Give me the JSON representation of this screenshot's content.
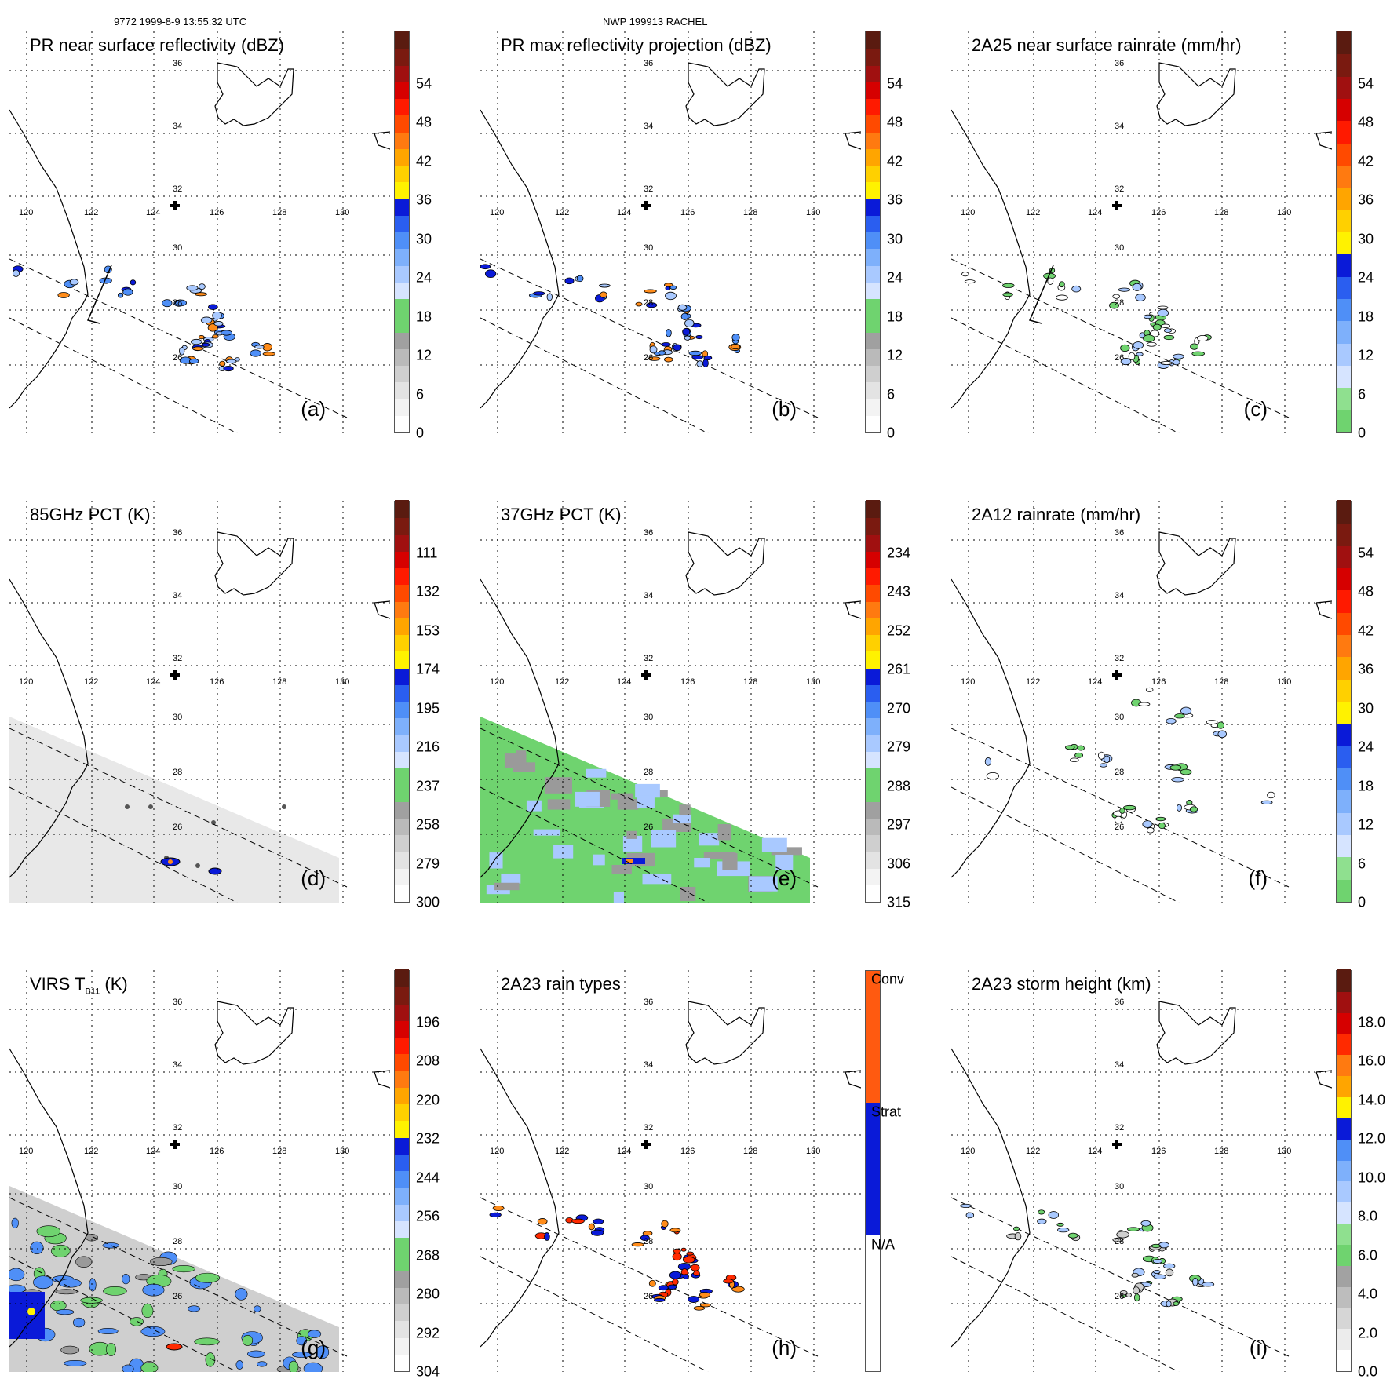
{
  "header": {
    "orbit_info": "9772 1999-8-9 13:55:32 UTC",
    "storm_info": "NWP 199913 RACHEL"
  },
  "grid": {
    "lat_labels": [
      "36",
      "34",
      "32",
      "30",
      "28",
      "26"
    ],
    "lon_labels": [
      "120",
      "122",
      "124",
      "126",
      "128",
      "130"
    ]
  },
  "colors": {
    "gray_ramp": [
      "#ffffff",
      "#eeeeee",
      "#dcdcdc",
      "#c6c6c6",
      "#aaaaaa"
    ],
    "green": "#6fd36f",
    "light_blue": "#a9c9ff",
    "mid_blue": "#4f8ff7",
    "blue": "#0a1ad8",
    "yellow": "#fff200",
    "orange": "#ff8c1a",
    "red": "#ff2a00",
    "dark_red": "#a01010",
    "brown": "#5a1b10"
  },
  "panels": [
    {
      "id": "a",
      "title": "PR near surface reflectivity (dBZ)",
      "label": "(a)",
      "ticks": [
        "0",
        "6",
        "12",
        "18",
        "24",
        "30",
        "36",
        "42",
        "48",
        "54"
      ],
      "scale": "dbz",
      "field": "swath-points"
    },
    {
      "id": "b",
      "title": "PR max reflectivity projection (dBZ)",
      "label": "(b)",
      "ticks": [
        "0",
        "6",
        "12",
        "18",
        "24",
        "30",
        "36",
        "42",
        "48",
        "54"
      ],
      "scale": "dbz",
      "field": "swath-points"
    },
    {
      "id": "c",
      "title": "2A25 near surface rainrate (mm/hr)",
      "label": "(c)",
      "ticks": [
        "0",
        "6",
        "12",
        "18",
        "24",
        "30",
        "36",
        "42",
        "48",
        "54"
      ],
      "scale": "rain",
      "field": "swath-points"
    },
    {
      "id": "d",
      "title": "85GHz PCT (K)",
      "label": "(d)",
      "ticks": [
        "300",
        "279",
        "258",
        "237",
        "216",
        "195",
        "174",
        "153",
        "132",
        "111"
      ],
      "scale": "dbz",
      "field": "wide-gray"
    },
    {
      "id": "e",
      "title": "37GHz PCT (K)",
      "label": "(e)",
      "ticks": [
        "315",
        "306",
        "297",
        "288",
        "279",
        "270",
        "261",
        "252",
        "243",
        "234"
      ],
      "scale": "dbz",
      "field": "wide-green"
    },
    {
      "id": "f",
      "title": "2A12 rainrate (mm/hr)",
      "label": "(f)",
      "ticks": [
        "0",
        "6",
        "12",
        "18",
        "24",
        "30",
        "36",
        "42",
        "48",
        "54"
      ],
      "scale": "rain",
      "field": "rain-contours"
    },
    {
      "id": "g",
      "title": "VIRS T",
      "title_sub": "B11",
      "title_unit": " (K)",
      "label": "(g)",
      "ticks": [
        "304",
        "292",
        "280",
        "268",
        "256",
        "244",
        "232",
        "220",
        "208",
        "196"
      ],
      "scale": "dbz",
      "field": "wide-ir"
    },
    {
      "id": "h",
      "title": "2A23 rain types",
      "label": "(h)",
      "ticks": [
        "N/A",
        "Strat",
        "Conv"
      ],
      "scale": "types",
      "field": "swath-points"
    },
    {
      "id": "i",
      "title": "2A23 storm height (km)",
      "label": "(i)",
      "ticks": [
        "0.0",
        "2.0",
        "4.0",
        "6.0",
        "8.0",
        "10.0",
        "12.0",
        "14.0",
        "16.0",
        "18.0"
      ],
      "scale": "height",
      "field": "swath-points"
    }
  ]
}
